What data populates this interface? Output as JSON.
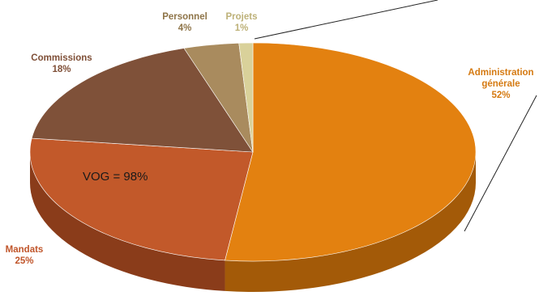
{
  "chart_data": {
    "type": "pie",
    "style": "3d-exploded",
    "title": "",
    "center_label": "VOG = 98%",
    "slices": [
      {
        "name": "Administration générale",
        "name_lines": [
          "Administration",
          "générale"
        ],
        "value": 52,
        "value_label": "52%",
        "color": "#E38110",
        "side_color": "#A35A08",
        "label_color": "#D57A12"
      },
      {
        "name": "Mandats",
        "name_lines": [
          "Mandats"
        ],
        "value": 25,
        "value_label": "25%",
        "color": "#C2592A",
        "side_color": "#8A3C1A",
        "label_color": "#C0552A"
      },
      {
        "name": "Commissions",
        "name_lines": [
          "Commissions"
        ],
        "value": 18,
        "value_label": "18%",
        "color": "#7F5139",
        "side_color": "#5A3626",
        "label_color": "#7F4F37"
      },
      {
        "name": "Personnel",
        "name_lines": [
          "Personnel"
        ],
        "value": 4,
        "value_label": "4%",
        "color": "#A98B5E",
        "side_color": "#7E673F",
        "label_color": "#8E7448"
      },
      {
        "name": "Projets",
        "name_lines": [
          "Projets"
        ],
        "value": 1,
        "value_label": "1%",
        "color": "#D9D19A",
        "side_color": "#A9A16A",
        "label_color": "#BDB178"
      }
    ]
  }
}
